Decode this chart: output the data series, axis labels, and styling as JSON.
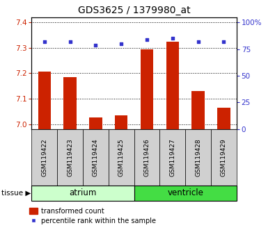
{
  "title": "GDS3625 / 1379980_at",
  "samples": [
    "GSM119422",
    "GSM119423",
    "GSM119424",
    "GSM119425",
    "GSM119426",
    "GSM119427",
    "GSM119428",
    "GSM119429"
  ],
  "transformed_count": [
    7.205,
    7.185,
    7.027,
    7.035,
    7.295,
    7.325,
    7.13,
    7.065
  ],
  "percentile_rank": [
    82,
    82,
    79,
    80,
    84,
    85,
    82,
    82
  ],
  "tissue_groups": [
    {
      "label": "atrium",
      "start": 0,
      "end": 4,
      "color": "#ccffcc"
    },
    {
      "label": "ventricle",
      "start": 4,
      "end": 8,
      "color": "#44dd44"
    }
  ],
  "ylim_left": [
    6.98,
    7.42
  ],
  "ylim_right": [
    0,
    105
  ],
  "yticks_left": [
    7.0,
    7.1,
    7.2,
    7.3,
    7.4
  ],
  "yticks_right": [
    0,
    25,
    50,
    75,
    100
  ],
  "bar_color": "#cc2200",
  "dot_color": "#3333cc",
  "bar_width": 0.5,
  "plot_bg_color": "#ffffff",
  "ylabel_left_color": "#cc2200",
  "ylabel_right_color": "#3333cc",
  "label_bg_color": "#d0d0d0",
  "title_fontsize": 10,
  "tick_fontsize": 7.5,
  "label_fontsize": 6.5,
  "tissue_fontsize": 8.5,
  "legend_fontsize": 7
}
